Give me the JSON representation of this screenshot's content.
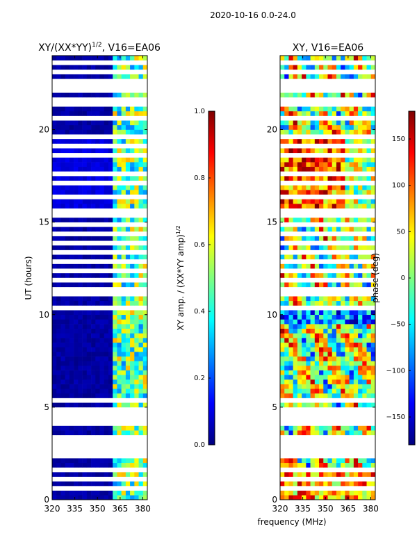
{
  "suptitle": "2020-10-16 0.0-24.0",
  "colors": {
    "jet": [
      "#00007f",
      "#0000ff",
      "#007fff",
      "#00ffff",
      "#7fff7f",
      "#ffff00",
      "#ff7f00",
      "#ff0000",
      "#7f0000"
    ],
    "gap": "#ffffff"
  },
  "chart_data": [
    {
      "type": "heatmap",
      "title_main": "XY/(XX*YY)",
      "title_sup": "1/2",
      "title_tail": ", V16=EA06",
      "xlabel": "",
      "ylabel": "UT (hours)",
      "xlim": [
        320,
        383
      ],
      "ylim": [
        0,
        24
      ],
      "xticks": [
        320,
        335,
        350,
        365,
        380
      ],
      "yticks": [
        0,
        5,
        10,
        15,
        20
      ],
      "colorbar": {
        "label_main": "XY amp. / (XX*YY amp)",
        "label_sup": "1/2",
        "range": [
          0.0,
          1.0
        ],
        "ticks": [
          "0.0",
          "0.2",
          "0.4",
          "0.6",
          "0.8",
          "1.0"
        ]
      }
    },
    {
      "type": "heatmap",
      "title": "XY, V16=EA06",
      "xlabel": "frequency (MHz)",
      "ylabel": "",
      "xlim": [
        320,
        383
      ],
      "ylim": [
        0,
        24
      ],
      "xticks": [
        320,
        335,
        350,
        365,
        380
      ],
      "yticks": [
        0,
        5,
        10,
        15,
        20
      ],
      "colorbar": {
        "label": "phase (deg)",
        "range": [
          -180,
          180
        ],
        "ticks": [
          "-150",
          "-100",
          "-50",
          "0",
          "50",
          "100",
          "150"
        ]
      }
    }
  ]
}
